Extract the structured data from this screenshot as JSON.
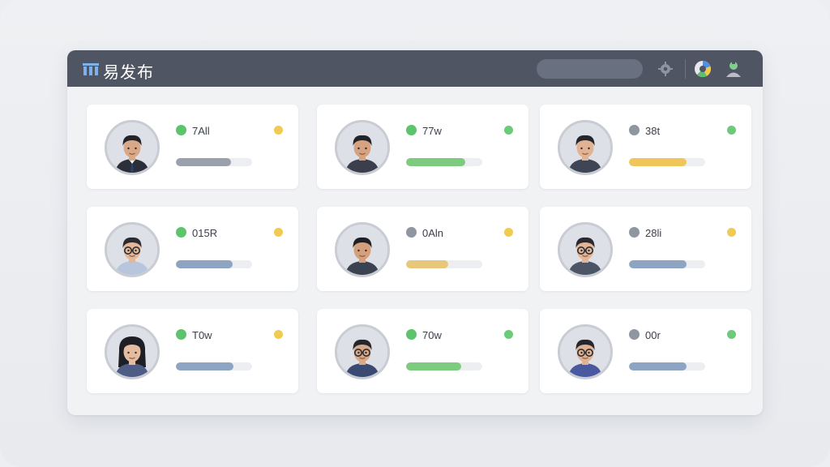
{
  "app": {
    "title": "易发布"
  },
  "search": {
    "placeholder": ""
  },
  "toolbar": {
    "settings_icon": "gear-icon",
    "chart_icon": "pie-chart-icon",
    "user_icon": "user-icon"
  },
  "colors": {
    "titlebar": "#4f5563",
    "status_online": "#5cc46a",
    "status_offline": "#8f95a1",
    "indicator_yellow": "#f0cb52",
    "indicator_green": "#6ccb78"
  },
  "cards": [
    {
      "code": "7All",
      "status": "online",
      "indicator": "yellow",
      "bar_color": "#9aa1ac",
      "progress": 0.72,
      "avatar": {
        "hair": "#23242a",
        "shirt": "#2b2f3a",
        "skin": "#d9a987",
        "glasses": false,
        "long_hair": false,
        "tie": true
      }
    },
    {
      "code": "77w",
      "status": "online",
      "indicator": "green",
      "bar_color": "#7ccb7f",
      "progress": 0.78,
      "avatar": {
        "hair": "#23242a",
        "shirt": "#3b3f4c",
        "skin": "#d6a27f",
        "glasses": false,
        "long_hair": false,
        "tie": false
      }
    },
    {
      "code": "38t",
      "status": "offline",
      "indicator": "green",
      "bar_color": "#f0c65a",
      "progress": 0.76,
      "avatar": {
        "hair": "#25262c",
        "shirt": "#3e4656",
        "skin": "#e2b393",
        "glasses": false,
        "long_hair": false,
        "tie": false
      }
    },
    {
      "code": "015R",
      "status": "online",
      "indicator": "yellow",
      "bar_color": "#8ea4c3",
      "progress": 0.74,
      "avatar": {
        "hair": "#2a2a30",
        "shirt": "#b7c6dc",
        "skin": "#e3b797",
        "glasses": true,
        "long_hair": false,
        "tie": false
      }
    },
    {
      "code": "0Aln",
      "status": "offline",
      "indicator": "yellow",
      "bar_color": "#e9c77a",
      "progress": 0.55,
      "avatar": {
        "hair": "#1f2026",
        "shirt": "#3c4350",
        "skin": "#d4a07c",
        "glasses": false,
        "long_hair": false,
        "tie": false
      }
    },
    {
      "code": "28li",
      "status": "offline",
      "indicator": "yellow",
      "bar_color": "#8ea4c3",
      "progress": 0.76,
      "avatar": {
        "hair": "#2a2a30",
        "shirt": "#4c5566",
        "skin": "#e2b596",
        "glasses": true,
        "long_hair": false,
        "tie": false
      }
    },
    {
      "code": "T0w",
      "status": "online",
      "indicator": "yellow",
      "bar_color": "#8ea4c3",
      "progress": 0.75,
      "avatar": {
        "hair": "#1e1f25",
        "shirt": "#4d5d86",
        "skin": "#e6bca1",
        "glasses": false,
        "long_hair": true,
        "tie": false
      }
    },
    {
      "code": "70w",
      "status": "online",
      "indicator": "green",
      "bar_color": "#7ccb7f",
      "progress": 0.72,
      "avatar": {
        "hair": "#25262c",
        "shirt": "#3a4a72",
        "skin": "#d9a987",
        "glasses": true,
        "long_hair": false,
        "tie": false
      }
    },
    {
      "code": "00r",
      "status": "offline",
      "indicator": "green",
      "bar_color": "#8ea4c3",
      "progress": 0.76,
      "avatar": {
        "hair": "#26272d",
        "shirt": "#4a58a0",
        "skin": "#e0b291",
        "glasses": true,
        "long_hair": false,
        "tie": false
      }
    }
  ]
}
